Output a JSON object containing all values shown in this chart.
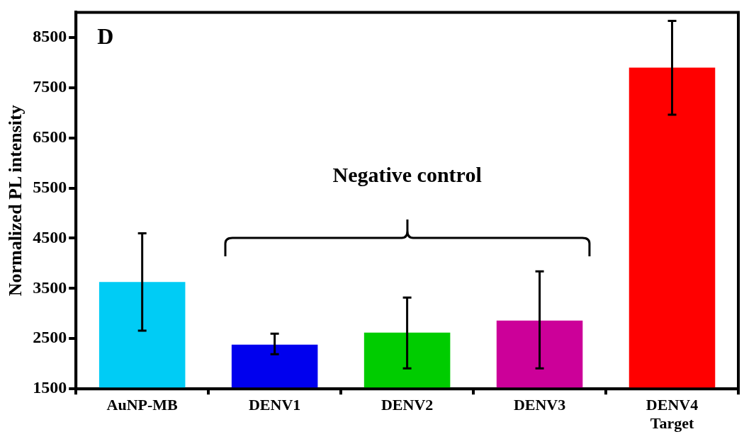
{
  "chart_data": {
    "type": "bar",
    "categories": [
      "AuNP-MB",
      "DENV1",
      "DENV2",
      "DENV3",
      "DENV4 Target"
    ],
    "values": [
      3630,
      2380,
      2620,
      2860,
      7900
    ],
    "colors": [
      "#00ccf5",
      "#0000ee",
      "#00cc00",
      "#cc0099",
      "#ff0000"
    ],
    "errors": [
      [
        2660,
        4600
      ],
      [
        2190,
        2600
      ],
      [
        1910,
        3320
      ],
      [
        1910,
        3840
      ],
      [
        6960,
        8830
      ]
    ],
    "ylabel": "Normalized PL intensity",
    "ylim": [
      1500,
      9000
    ],
    "yticks": [
      1500,
      2500,
      3500,
      4500,
      5500,
      6500,
      7500,
      8500
    ],
    "annotations": [
      "D",
      "Negative control"
    ],
    "grid": false,
    "legend": false
  }
}
